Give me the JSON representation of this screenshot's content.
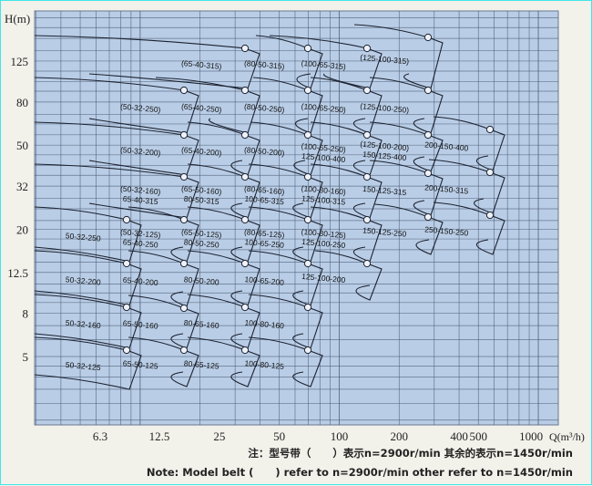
{
  "chart_data": {
    "type": "line",
    "ylabel": "H(m)",
    "xlabel": "Q(m³/h)",
    "x_scale": "log",
    "y_scale": "log",
    "grid": true,
    "y_ticks": [
      "125",
      "80",
      "50",
      "32",
      "20",
      "12.5",
      "8",
      "5"
    ],
    "x_ticks": [
      "6.3",
      "12.5",
      "25",
      "50",
      "100",
      "200",
      "400",
      "500",
      "1000"
    ],
    "colors": {
      "plot_bg": "#b9cde6",
      "grid": "#4a5a72",
      "curve": "#1c2230"
    },
    "tiles": [
      {
        "labels": [
          "50-32-250"
        ]
      },
      {
        "labels": [
          "50-32-200"
        ]
      },
      {
        "labels": [
          "50-32-160"
        ]
      },
      {
        "labels": [
          "50-32-125"
        ]
      },
      {
        "labels": [
          "(50-32-250)"
        ]
      },
      {
        "labels": [
          "(50-32-200)"
        ]
      },
      {
        "labels": [
          "(50-32-160)",
          "65-40-315"
        ]
      },
      {
        "labels": [
          "(50-32-125)",
          "65-40-250"
        ]
      },
      {
        "labels": [
          "65-40-200"
        ]
      },
      {
        "labels": [
          "65-50-160"
        ]
      },
      {
        "labels": [
          "65-50-125"
        ]
      },
      {
        "labels": [
          "(65-40-315)"
        ]
      },
      {
        "labels": [
          "(65-40-250)"
        ]
      },
      {
        "labels": [
          "(65-40-200)"
        ]
      },
      {
        "labels": [
          "(65-50-160)",
          "80-50-315"
        ]
      },
      {
        "labels": [
          "(65-50-125)",
          "80-50-250"
        ]
      },
      {
        "labels": [
          "80-50-200"
        ]
      },
      {
        "labels": [
          "80-65-160"
        ]
      },
      {
        "labels": [
          "80-65-125"
        ]
      },
      {
        "labels": [
          "(80-50-315)"
        ]
      },
      {
        "labels": [
          "(80-50-250)"
        ]
      },
      {
        "labels": [
          "(80-50-200)"
        ]
      },
      {
        "labels": [
          "(80-65-160)",
          "100-65-315"
        ]
      },
      {
        "labels": [
          "(80-65-125)",
          "100-65-250"
        ]
      },
      {
        "labels": [
          "100-65-200"
        ]
      },
      {
        "labels": [
          "100-80-160"
        ]
      },
      {
        "labels": [
          "100-80-125"
        ]
      },
      {
        "labels": [
          "(100-65-315)"
        ]
      },
      {
        "labels": [
          "(100-65-250)"
        ]
      },
      {
        "labels": [
          "(100-65-250)",
          "125-100-400"
        ]
      },
      {
        "labels": [
          "(100-80-160)",
          "125-100-315"
        ]
      },
      {
        "labels": [
          "(100-80-125)",
          "125-100-250"
        ]
      },
      {
        "labels": [
          "125-100-200"
        ]
      },
      {
        "labels": [
          "(125-100-315)"
        ]
      },
      {
        "labels": [
          "(125-100-250)"
        ]
      },
      {
        "labels": [
          "(125-100-200)",
          "150-125-400"
        ]
      },
      {
        "labels": [
          "150-125-315"
        ]
      },
      {
        "labels": [
          "150-125-250"
        ]
      },
      {
        "labels": [
          "200-150-400"
        ]
      },
      {
        "labels": [
          "200-150-315"
        ]
      },
      {
        "labels": [
          "250-150-250"
        ]
      }
    ]
  },
  "notes": {
    "cn": "注：型号带（      ）表示n=2900r/min 其余的表示n=1450r/min",
    "en": "Note: Model belt (      ) refer to n=2900r/min other refer to n=1450r/min"
  }
}
